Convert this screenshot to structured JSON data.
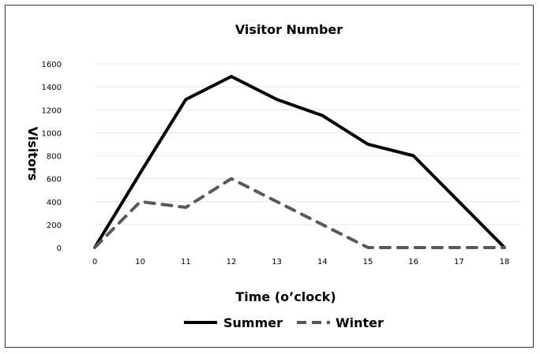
{
  "chart_data": {
    "type": "line",
    "title": "Visitor Number",
    "xlabel": "Time (o’clock)",
    "ylabel": "Visitors",
    "categories": [
      "0",
      "10",
      "11",
      "12",
      "13",
      "14",
      "15",
      "16",
      "17",
      "18"
    ],
    "yticks": [
      "0",
      "200",
      "400",
      "600",
      "800",
      "1000",
      "1200",
      "1400",
      "1600"
    ],
    "ylim": [
      0,
      1600
    ],
    "grid": true,
    "legend_position": "bottom",
    "series": [
      {
        "name": "Summer",
        "values": [
          0,
          650,
          1290,
          1490,
          1290,
          1150,
          900,
          800,
          400,
          0
        ],
        "color": "#000000",
        "style": "solid"
      },
      {
        "name": "Winter",
        "values": [
          0,
          400,
          350,
          600,
          400,
          200,
          0,
          0,
          0,
          0
        ],
        "color": "#595959",
        "style": "dashed"
      }
    ]
  }
}
